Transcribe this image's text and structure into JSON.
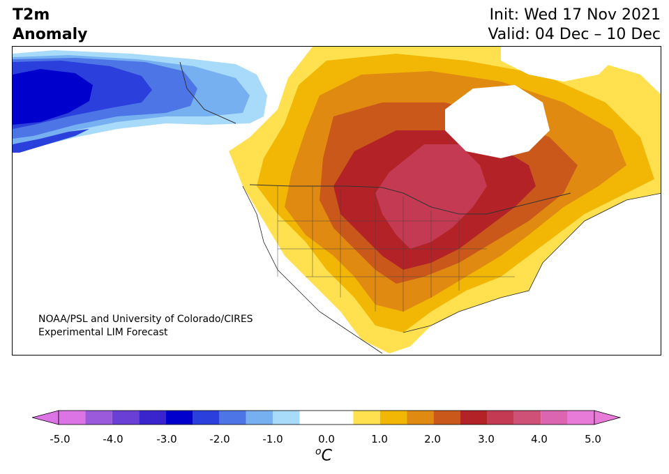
{
  "header": {
    "title_line1": "T2m",
    "title_line2": "Anomaly",
    "init": "Init: Wed 17 Nov 2021",
    "valid": "Valid: 04 Dec – 10 Dec"
  },
  "credit": {
    "line1": "NOAA/PSL and University of Colorado/CIRES",
    "line2": "Experimental LIM Forecast"
  },
  "colorbar": {
    "unit_sup": "o",
    "unit": "C",
    "ticks": [
      "-5.0",
      "-4.0",
      "-3.0",
      "-2.0",
      "-1.0",
      "0.0",
      "1.0",
      "2.0",
      "3.0",
      "4.0",
      "5.0"
    ],
    "colors": {
      "lt_m5": "#dc74e6",
      "m5": "#9b59dc",
      "m45": "#6a3fd6",
      "m4": "#3a24cc",
      "m35": "#0000cc",
      "m3": "#2a3fdc",
      "m25": "#4d75e6",
      "m2": "#77b0f0",
      "m15": "#a8dafa",
      "zero": "#ffffff",
      "p1": "#ffe14f",
      "p15": "#f2b705",
      "p2": "#e08a12",
      "p25": "#c9581a",
      "p3": "#b22226",
      "p35": "#c43a52",
      "p4": "#cf5178",
      "p45": "#db65b0",
      "gt_p5": "#e87ad8"
    }
  }
}
